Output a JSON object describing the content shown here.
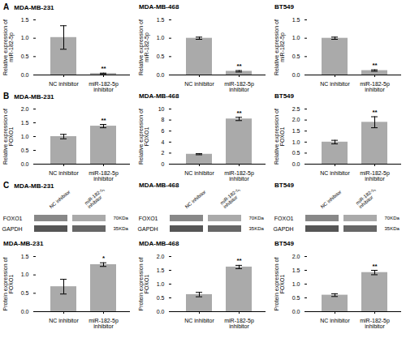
{
  "chart_data": [
    {
      "type": "bar",
      "title": "MDA-MB-231",
      "ylabel": "Relative expression of\nmiR-182-5p",
      "categories": [
        "NC inhibitor",
        "miR-182-5p inhibitor"
      ],
      "values": [
        1.02,
        0.04
      ],
      "errors": [
        0.32,
        0.01
      ],
      "color": "#aaaaaa",
      "ylim": [
        0,
        1.5
      ],
      "yticks": [
        {
          "value": 0,
          "label": "0.0"
        },
        0.5,
        {
          "value": 1,
          "label": "1.0"
        },
        1.5
      ],
      "annotations": [
        {
          "text": "**",
          "category": "miR-182-5p inhibitor"
        },
        {
          "text": "A"
        }
      ]
    },
    {
      "type": "bar",
      "title": "MDA-MB-468",
      "ylabel": "Relative expression of\nmiR-182-5p",
      "categories": [
        "NC inhibitor",
        "miR-182-5p inhibitor"
      ],
      "values": [
        1.0,
        0.1
      ],
      "errors": [
        0.03,
        0.02
      ],
      "color": "#aaaaaa",
      "ylim": [
        0,
        1.5
      ],
      "yticks": [
        {
          "value": 0,
          "label": "0.0"
        },
        0.5,
        {
          "value": 1,
          "label": "1.0"
        },
        1.5
      ],
      "annotations": [
        {
          "text": "**",
          "category": "miR-182-5p inhibitor"
        }
      ]
    },
    {
      "type": "bar",
      "title": "BT549",
      "ylabel": "Relative expression of\nmiR-182-5p",
      "categories": [
        "NC inhibitor",
        "miR-182-5p inhibitor"
      ],
      "values": [
        1.0,
        0.12
      ],
      "errors": [
        0.03,
        0.02
      ],
      "color": "#aaaaaa",
      "ylim": [
        0,
        1.5
      ],
      "yticks": [
        {
          "value": 0,
          "label": "0.0"
        },
        0.5,
        {
          "value": 1,
          "label": "1.0"
        },
        1.5
      ],
      "annotations": [
        {
          "text": "**",
          "category": "miR-182-5p inhibitor"
        }
      ]
    },
    {
      "type": "bar",
      "title": "MDA-MB-231",
      "ylabel": "Relative expression of\nFOXO1",
      "categories": [
        "NC inhibitor",
        "miR-182-5p inhibitor"
      ],
      "values": [
        1.0,
        1.38
      ],
      "errors": [
        0.08,
        0.06
      ],
      "color": "#aaaaaa",
      "ylim": [
        0,
        2.0
      ],
      "yticks": [
        {
          "value": 0,
          "label": "0.0"
        },
        0.5,
        {
          "value": 1,
          "label": "1.0"
        },
        1.5,
        {
          "value": 2,
          "label": "2.0"
        }
      ],
      "annotations": [
        {
          "text": "**",
          "category": "miR-182-5p inhibitor"
        },
        {
          "text": "B"
        }
      ]
    },
    {
      "type": "bar",
      "title": "MDA-MB-468",
      "ylabel": "Relative expression of\nFOXO1",
      "categories": [
        "NC inhibitor",
        "miR-182-5p inhibitor"
      ],
      "values": [
        1.8,
        8.2
      ],
      "errors": [
        0.1,
        0.3
      ],
      "color": "#aaaaaa",
      "ylim": [
        0,
        10
      ],
      "yticks": [
        0,
        2,
        4,
        6,
        8,
        10
      ],
      "annotations": [
        {
          "text": "**",
          "category": "miR-182-5p inhibitor"
        }
      ]
    },
    {
      "type": "bar",
      "title": "BT549",
      "ylabel": "Relative expression of\nFOXO1",
      "categories": [
        "NC inhibitor",
        "miR-182-5p inhibitor"
      ],
      "values": [
        1.0,
        1.9
      ],
      "errors": [
        0.08,
        0.25
      ],
      "color": "#aaaaaa",
      "ylim": [
        0,
        2.5
      ],
      "yticks": [
        {
          "value": 0,
          "label": "0.0"
        },
        0.5,
        {
          "value": 1,
          "label": "1.0"
        },
        1.5,
        {
          "value": 2,
          "label": "2.0"
        },
        2.5
      ],
      "annotations": [
        {
          "text": "**",
          "category": "miR-182-5p inhibitor"
        }
      ]
    },
    {
      "type": "western_blot",
      "title": "MDA-MB-231",
      "categories": [
        "FOXO1",
        "GAPDH"
      ],
      "series": [
        {
          "name": "NC inhibitor",
          "colors": [
            "#888888",
            "#555555"
          ]
        },
        {
          "name": "miR-182-5p\ninhibitor",
          "colors": [
            "#aaaaaa",
            "#666666"
          ]
        }
      ],
      "annotations": [
        {
          "text": "70KDa",
          "category": "FOXO1"
        },
        {
          "text": "35KDa",
          "category": "GAPDH"
        },
        {
          "text": "C"
        }
      ]
    },
    {
      "type": "western_blot",
      "title": "MDA-MB-468",
      "categories": [
        "FOXO1",
        "GAPDH"
      ],
      "series": [
        {
          "name": "NC inhibitor",
          "colors": [
            "#888888",
            "#555555"
          ]
        },
        {
          "name": "miR-182-5p\ninhibitor",
          "colors": [
            "#aaaaaa",
            "#666666"
          ]
        }
      ],
      "annotations": [
        {
          "text": "70KDa",
          "category": "FOXO1"
        },
        {
          "text": "35KDa",
          "category": "GAPDH"
        }
      ]
    },
    {
      "type": "western_blot",
      "title": "BT549",
      "categories": [
        "FOXO1",
        "GAPDH"
      ],
      "series": [
        {
          "name": "NC inhibitor",
          "colors": [
            "#888888",
            "#555555"
          ]
        },
        {
          "name": "miR-182-5p\ninhibitor",
          "colors": [
            "#aaaaaa",
            "#666666"
          ]
        }
      ],
      "annotations": [
        {
          "text": "70KDa",
          "category": "FOXO1"
        },
        {
          "text": "35KDa",
          "category": "GAPDH"
        }
      ]
    },
    {
      "type": "bar",
      "title": "MDA-MB-231",
      "ylabel": "Protein expression of\nFOXO1",
      "categories": [
        "NC inhibitor",
        "miR-182-5p inhibitor"
      ],
      "values": [
        0.68,
        1.28
      ],
      "errors": [
        0.2,
        0.05
      ],
      "color": "#aaaaaa",
      "ylim": [
        0,
        1.5
      ],
      "yticks": [
        {
          "value": 0,
          "label": "0.0"
        },
        0.5,
        {
          "value": 1,
          "label": "1.0"
        },
        1.5
      ],
      "annotations": [
        {
          "text": "*",
          "category": "miR-182-5p inhibitor"
        }
      ]
    },
    {
      "type": "bar",
      "title": "MDA-MB-468",
      "ylabel": "Protein expression of\nFOXO1",
      "categories": [
        "NC inhibitor",
        "miR-182-5p inhibitor"
      ],
      "values": [
        0.62,
        1.62
      ],
      "errors": [
        0.08,
        0.06
      ],
      "color": "#aaaaaa",
      "ylim": [
        0,
        2.0
      ],
      "yticks": [
        {
          "value": 0,
          "label": "0.0"
        },
        0.5,
        {
          "value": 1,
          "label": "1.0"
        },
        1.5,
        {
          "value": 2,
          "label": "2.0"
        }
      ],
      "annotations": [
        {
          "text": "**",
          "category": "miR-182-5p inhibitor"
        }
      ]
    },
    {
      "type": "bar",
      "title": "BT549",
      "ylabel": "Protein expression of\nFOXO1",
      "categories": [
        "NC inhibitor",
        "miR-182-5p inhibitor"
      ],
      "values": [
        0.6,
        1.42
      ],
      "errors": [
        0.05,
        0.08
      ],
      "color": "#aaaaaa",
      "ylim": [
        0,
        2.0
      ],
      "yticks": [
        {
          "value": 0,
          "label": "0.0"
        },
        0.5,
        {
          "value": 1,
          "label": "1.0"
        },
        1.5,
        {
          "value": 2,
          "label": "2.0"
        }
      ],
      "annotations": [
        {
          "text": "**",
          "category": "miR-182-5p inhibitor"
        }
      ]
    }
  ]
}
